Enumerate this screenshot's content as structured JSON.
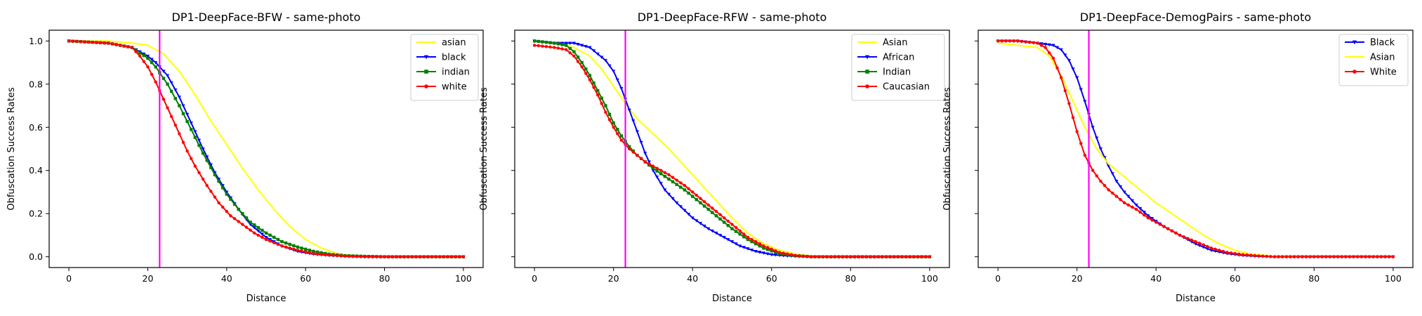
{
  "figure": "three-panel obfuscation success rate chart",
  "chart_data": [
    {
      "type": "line",
      "title": "DP1-DeepFace-BFW - same-photo",
      "xlabel": "Distance",
      "ylabel": "Obfuscation Success Rates",
      "xlim": [
        -5,
        105
      ],
      "ylim": [
        -0.05,
        1.05
      ],
      "xticks": [
        0,
        20,
        40,
        60,
        80,
        100
      ],
      "yticks": [
        0.0,
        0.2,
        0.4,
        0.6,
        0.8,
        1.0
      ],
      "xtick_labels": [
        "0",
        "20",
        "40",
        "60",
        "80",
        "100"
      ],
      "ytick_labels": [
        "0.0",
        "0.2",
        "0.4",
        "0.6",
        "0.8",
        "1.0"
      ],
      "show_ytick_labels": true,
      "grid": false,
      "legend_position": "top-right",
      "vline": {
        "x": 23,
        "color": "#ff00ff"
      },
      "series": [
        {
          "name": "asian",
          "color": "#ffff00",
          "marker": "none",
          "x": [
            0,
            10,
            16,
            20,
            24,
            28,
            32,
            36,
            40,
            44,
            48,
            52,
            56,
            60,
            64,
            68,
            72,
            80,
            90,
            100
          ],
          "y": [
            1.0,
            1.0,
            0.99,
            0.98,
            0.94,
            0.86,
            0.75,
            0.63,
            0.52,
            0.41,
            0.31,
            0.22,
            0.14,
            0.08,
            0.04,
            0.015,
            0.005,
            0.0,
            0.0,
            0.0
          ]
        },
        {
          "name": "black",
          "color": "#0000ff",
          "marker": "triangle-down",
          "x": [
            0,
            10,
            16,
            20,
            22,
            25,
            28,
            31,
            34,
            37,
            40,
            43,
            46,
            50,
            54,
            58,
            62,
            66,
            70,
            75,
            80,
            100
          ],
          "y": [
            1.0,
            0.99,
            0.97,
            0.93,
            0.9,
            0.84,
            0.74,
            0.62,
            0.5,
            0.39,
            0.3,
            0.22,
            0.15,
            0.09,
            0.05,
            0.025,
            0.012,
            0.006,
            0.002,
            0.0,
            0.0,
            0.0
          ]
        },
        {
          "name": "indian",
          "color": "#008000",
          "marker": "square",
          "x": [
            0,
            10,
            16,
            20,
            22,
            25,
            28,
            31,
            34,
            37,
            40,
            43,
            46,
            50,
            54,
            58,
            62,
            66,
            70,
            75,
            80,
            100
          ],
          "y": [
            1.0,
            0.99,
            0.97,
            0.92,
            0.88,
            0.8,
            0.7,
            0.59,
            0.48,
            0.38,
            0.29,
            0.22,
            0.16,
            0.11,
            0.07,
            0.045,
            0.025,
            0.012,
            0.005,
            0.002,
            0.0,
            0.0
          ]
        },
        {
          "name": "white",
          "color": "#ff0000",
          "marker": "circle",
          "x": [
            0,
            10,
            16,
            18,
            20,
            22,
            24,
            26,
            28,
            30,
            32,
            35,
            38,
            41,
            44,
            47,
            50,
            54,
            58,
            62,
            66,
            70,
            75,
            80,
            100
          ],
          "y": [
            1.0,
            0.99,
            0.97,
            0.93,
            0.88,
            0.81,
            0.73,
            0.65,
            0.57,
            0.49,
            0.42,
            0.33,
            0.25,
            0.19,
            0.15,
            0.11,
            0.08,
            0.05,
            0.03,
            0.015,
            0.008,
            0.003,
            0.0,
            0.0,
            0.0
          ]
        }
      ]
    },
    {
      "type": "line",
      "title": "DP1-DeepFace-RFW - same-photo",
      "xlabel": "Distance",
      "ylabel": "Obfuscation Success Rates",
      "xlim": [
        -5,
        105
      ],
      "ylim": [
        -0.05,
        1.05
      ],
      "xticks": [
        0,
        20,
        40,
        60,
        80,
        100
      ],
      "yticks": [
        0.0,
        0.2,
        0.4,
        0.6,
        0.8,
        1.0
      ],
      "xtick_labels": [
        "0",
        "20",
        "40",
        "60",
        "80",
        "100"
      ],
      "ytick_labels": [
        "",
        "",
        "",
        "",
        "",
        ""
      ],
      "show_ytick_labels": false,
      "grid": false,
      "legend_position": "top-right",
      "vline": {
        "x": 23,
        "color": "#ff00ff"
      },
      "series": [
        {
          "name": "Asian",
          "color": "#ffff00",
          "marker": "none",
          "x": [
            0,
            5,
            10,
            14,
            17,
            20,
            23,
            26,
            30,
            34,
            38,
            42,
            46,
            50,
            54,
            58,
            62,
            66,
            70,
            80,
            100
          ],
          "y": [
            1.0,
            0.99,
            0.97,
            0.93,
            0.87,
            0.79,
            0.71,
            0.64,
            0.57,
            0.5,
            0.42,
            0.34,
            0.26,
            0.18,
            0.11,
            0.06,
            0.03,
            0.012,
            0.004,
            0.0,
            0.0
          ]
        },
        {
          "name": "African",
          "color": "#0000ff",
          "marker": "triangle-down",
          "x": [
            0,
            5,
            10,
            14,
            18,
            20,
            22,
            24,
            26,
            28,
            30,
            33,
            36,
            40,
            44,
            48,
            52,
            56,
            60,
            64,
            68,
            75,
            100
          ],
          "y": [
            1.0,
            0.99,
            0.99,
            0.97,
            0.91,
            0.86,
            0.78,
            0.68,
            0.58,
            0.48,
            0.4,
            0.31,
            0.25,
            0.18,
            0.13,
            0.09,
            0.05,
            0.025,
            0.01,
            0.004,
            0.001,
            0.0,
            0.0
          ]
        },
        {
          "name": "Indian",
          "color": "#008000",
          "marker": "square",
          "x": [
            0,
            5,
            8,
            10,
            12,
            14,
            16,
            18,
            20,
            22,
            24,
            26,
            28,
            30,
            34,
            38,
            42,
            46,
            50,
            54,
            58,
            62,
            66,
            70,
            100
          ],
          "y": [
            1.0,
            0.99,
            0.98,
            0.95,
            0.9,
            0.84,
            0.77,
            0.7,
            0.62,
            0.56,
            0.51,
            0.47,
            0.44,
            0.41,
            0.36,
            0.31,
            0.25,
            0.19,
            0.13,
            0.08,
            0.04,
            0.015,
            0.005,
            0.0,
            0.0
          ]
        },
        {
          "name": "Caucasian",
          "color": "#ff0000",
          "marker": "circle",
          "x": [
            0,
            5,
            8,
            10,
            12,
            14,
            16,
            18,
            20,
            22,
            24,
            26,
            28,
            30,
            34,
            38,
            42,
            46,
            50,
            54,
            58,
            62,
            66,
            70,
            100
          ],
          "y": [
            0.98,
            0.97,
            0.96,
            0.93,
            0.88,
            0.82,
            0.75,
            0.67,
            0.6,
            0.54,
            0.5,
            0.47,
            0.44,
            0.42,
            0.38,
            0.33,
            0.27,
            0.21,
            0.15,
            0.09,
            0.05,
            0.02,
            0.006,
            0.0,
            0.0
          ]
        }
      ]
    },
    {
      "type": "line",
      "title": "DP1-DeepFace-DemogPairs - same-photo",
      "xlabel": "Distance",
      "ylabel": "Obfuscation Success Rates",
      "xlim": [
        -5,
        105
      ],
      "ylim": [
        -0.05,
        1.05
      ],
      "xticks": [
        0,
        20,
        40,
        60,
        80,
        100
      ],
      "yticks": [
        0.0,
        0.2,
        0.4,
        0.6,
        0.8,
        1.0
      ],
      "xtick_labels": [
        "0",
        "20",
        "40",
        "60",
        "80",
        "100"
      ],
      "ytick_labels": [
        "",
        "",
        "",
        "",
        "",
        ""
      ],
      "show_ytick_labels": false,
      "grid": false,
      "legend_position": "top-right",
      "vline": {
        "x": 23,
        "color": "#ff00ff"
      },
      "series": [
        {
          "name": "Black",
          "color": "#0000ff",
          "marker": "triangle-down",
          "x": [
            0,
            5,
            10,
            14,
            16,
            18,
            20,
            22,
            24,
            26,
            28,
            30,
            32,
            35,
            38,
            42,
            46,
            50,
            54,
            58,
            62,
            66,
            70,
            100
          ],
          "y": [
            1.0,
            1.0,
            0.99,
            0.98,
            0.96,
            0.91,
            0.83,
            0.72,
            0.6,
            0.5,
            0.42,
            0.35,
            0.3,
            0.24,
            0.19,
            0.14,
            0.1,
            0.06,
            0.03,
            0.015,
            0.006,
            0.002,
            0.0,
            0.0
          ]
        },
        {
          "name": "Asian",
          "color": "#ffff00",
          "marker": "none",
          "x": [
            0,
            5,
            10,
            13,
            16,
            19,
            22,
            25,
            28,
            32,
            36,
            40,
            44,
            48,
            52,
            56,
            60,
            64,
            70,
            80,
            100
          ],
          "y": [
            0.99,
            0.98,
            0.97,
            0.93,
            0.84,
            0.72,
            0.6,
            0.5,
            0.43,
            0.37,
            0.31,
            0.25,
            0.2,
            0.15,
            0.1,
            0.06,
            0.03,
            0.012,
            0.003,
            0.0,
            0.0
          ]
        },
        {
          "name": "White",
          "color": "#ff0000",
          "marker": "circle",
          "x": [
            0,
            5,
            10,
            12,
            14,
            16,
            18,
            20,
            22,
            24,
            26,
            28,
            30,
            32,
            35,
            38,
            42,
            46,
            50,
            54,
            58,
            62,
            66,
            70,
            100
          ],
          "y": [
            1.0,
            1.0,
            0.99,
            0.97,
            0.92,
            0.83,
            0.71,
            0.58,
            0.47,
            0.4,
            0.35,
            0.31,
            0.28,
            0.25,
            0.22,
            0.18,
            0.14,
            0.1,
            0.07,
            0.04,
            0.02,
            0.01,
            0.004,
            0.0,
            0.0
          ]
        }
      ]
    }
  ]
}
